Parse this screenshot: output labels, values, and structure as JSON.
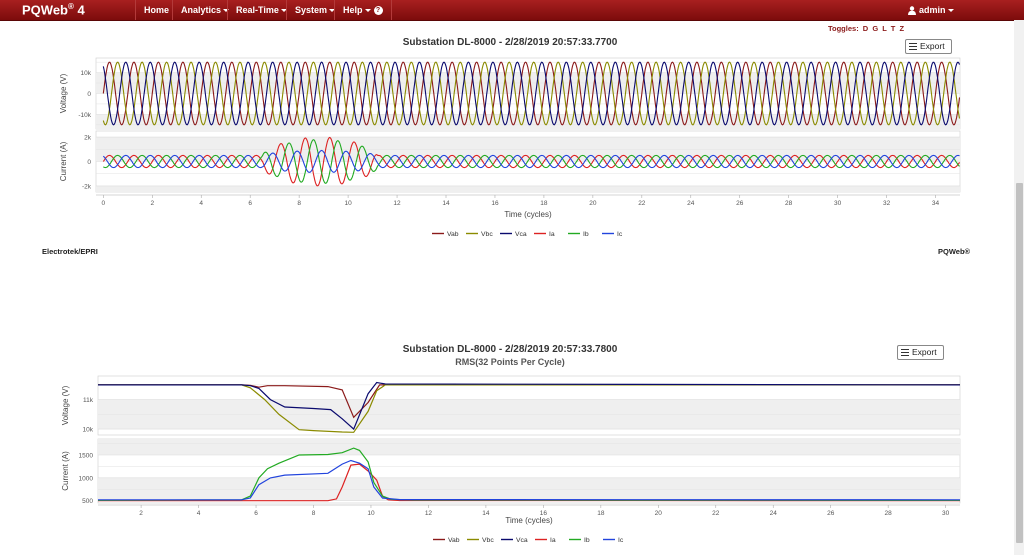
{
  "nav": {
    "brand": "PQWeb",
    "brand_sup": "®",
    "brand_version": "4",
    "items": [
      {
        "label": "Home"
      },
      {
        "label": "Analytics"
      },
      {
        "label": "Real-Time"
      },
      {
        "label": "System"
      },
      {
        "label": "Help"
      }
    ],
    "user": "admin"
  },
  "toggles": {
    "label": "Toggles:",
    "items": [
      "D",
      "G",
      "L",
      "T",
      "Z"
    ]
  },
  "footer": {
    "left": "Electrotek/EPRI",
    "right": "PQWeb®"
  },
  "colors": {
    "navbar": "#8b1010",
    "Vab": "#8b1a1a",
    "Vbc": "#8b8b00",
    "Vca": "#0a0a6e",
    "Ia": "#dd2222",
    "Ib": "#22aa22",
    "Ic": "#2244dd"
  },
  "chart_data": [
    {
      "type": "line",
      "title": "Substation DL-8000 - 2/28/2019 20:57:33.7700",
      "export_label": "Export",
      "xlabel": "Time (cycles)",
      "xlim": [
        -0.3,
        35
      ],
      "xticks": [
        "0",
        "2",
        "4",
        "6",
        "8",
        "10",
        "12",
        "14",
        "16",
        "18",
        "20",
        "22",
        "24",
        "26",
        "28",
        "30",
        "32",
        "34"
      ],
      "panels": [
        {
          "ylabel": "Voltage (V)",
          "ylim": [
            -17000,
            17000
          ],
          "yticks": [
            "10k",
            "0",
            "-10k"
          ],
          "grid": true
        },
        {
          "ylabel": "Current (A)",
          "ylim": [
            -2500,
            2500
          ],
          "yticks": [
            "2k",
            "0",
            "-2k"
          ],
          "grid": true
        }
      ],
      "series": [
        {
          "name": "Vab",
          "panel": "voltage",
          "amplitude": 15000,
          "phase_deg": 0
        },
        {
          "name": "Vbc",
          "panel": "voltage",
          "amplitude": 15000,
          "phase_deg": -120
        },
        {
          "name": "Vca",
          "panel": "voltage",
          "amplitude": 15000,
          "phase_deg": 120
        },
        {
          "name": "Ia",
          "panel": "current",
          "amplitude": 500,
          "fault_amplitude": 2000,
          "phase_deg": 0
        },
        {
          "name": "Ib",
          "panel": "current",
          "amplitude": 500,
          "fault_amplitude": 1800,
          "phase_deg": -120
        },
        {
          "name": "Ic",
          "panel": "current",
          "amplitude": 500,
          "fault_amplitude": 900,
          "phase_deg": 120
        }
      ],
      "fault_cycles": [
        6.5,
        11.2
      ],
      "legend": [
        "Vab",
        "Vbc",
        "Vca",
        "Ia",
        "Ib",
        "Ic"
      ],
      "legend_position": "bottom"
    },
    {
      "type": "line",
      "title": "Substation DL-8000 - 2/28/2019 20:57:33.7800",
      "subtitle": "RMS(32 Points Per Cycle)",
      "export_label": "Export",
      "xlabel": "Time (cycles)",
      "xlim": [
        0.5,
        30.5
      ],
      "xticks": [
        "2",
        "4",
        "6",
        "8",
        "10",
        "12",
        "14",
        "16",
        "18",
        "20",
        "22",
        "24",
        "26",
        "28",
        "30"
      ],
      "panels": [
        {
          "ylabel": "Voltage (V)",
          "ylim": [
            9800,
            11800
          ],
          "yticks": [
            "11k",
            "10k"
          ],
          "grid": true
        },
        {
          "ylabel": "Current (A)",
          "ylim": [
            450,
            1850
          ],
          "yticks": [
            "1500",
            "1000",
            "500"
          ],
          "grid": true
        }
      ],
      "series": [
        {
          "name": "Vab",
          "panel": "voltage",
          "points": [
            [
              0.5,
              11500
            ],
            [
              5.5,
              11500
            ],
            [
              5.8,
              11480
            ],
            [
              6.1,
              11420
            ],
            [
              6.4,
              11470
            ],
            [
              7,
              11470
            ],
            [
              8.5,
              11440
            ],
            [
              9,
              11330
            ],
            [
              9.4,
              10400
            ],
            [
              9.9,
              10900
            ],
            [
              10.3,
              11500
            ],
            [
              30.5,
              11500
            ]
          ]
        },
        {
          "name": "Vbc",
          "panel": "voltage",
          "points": [
            [
              0.5,
              11500
            ],
            [
              5.5,
              11500
            ],
            [
              5.8,
              11400
            ],
            [
              6.3,
              11000
            ],
            [
              6.8,
              10500
            ],
            [
              7.5,
              9980
            ],
            [
              8,
              9950
            ],
            [
              9,
              9900
            ],
            [
              9.4,
              9890
            ],
            [
              9.9,
              10600
            ],
            [
              10.2,
              11300
            ],
            [
              10.5,
              11500
            ],
            [
              30.5,
              11500
            ]
          ]
        },
        {
          "name": "Vca",
          "panel": "voltage",
          "points": [
            [
              0.5,
              11500
            ],
            [
              5.5,
              11500
            ],
            [
              5.8,
              11470
            ],
            [
              6.1,
              11380
            ],
            [
              6.5,
              11000
            ],
            [
              7,
              10750
            ],
            [
              8,
              10700
            ],
            [
              8.6,
              10660
            ],
            [
              9,
              10350
            ],
            [
              9.4,
              10000
            ],
            [
              9.9,
              11200
            ],
            [
              10.2,
              11580
            ],
            [
              10.5,
              11530
            ],
            [
              30.5,
              11500
            ]
          ]
        },
        {
          "name": "Ia",
          "panel": "current",
          "points": [
            [
              0.5,
              500
            ],
            [
              8.5,
              500
            ],
            [
              8.8,
              540
            ],
            [
              9.0,
              800
            ],
            [
              9.3,
              1280
            ],
            [
              9.6,
              1300
            ],
            [
              9.9,
              1150
            ],
            [
              10.2,
              950
            ],
            [
              10.4,
              600
            ],
            [
              10.6,
              520
            ],
            [
              11,
              505
            ],
            [
              30.5,
              500
            ]
          ]
        },
        {
          "name": "Ib",
          "panel": "current",
          "points": [
            [
              0.5,
              510
            ],
            [
              5.5,
              520
            ],
            [
              5.8,
              600
            ],
            [
              6.1,
              1000
            ],
            [
              6.4,
              1200
            ],
            [
              6.8,
              1320
            ],
            [
              7.5,
              1500
            ],
            [
              8.5,
              1510
            ],
            [
              9,
              1550
            ],
            [
              9.4,
              1650
            ],
            [
              9.6,
              1600
            ],
            [
              9.9,
              1350
            ],
            [
              10.1,
              900
            ],
            [
              10.4,
              600
            ],
            [
              10.7,
              530
            ],
            [
              11.5,
              515
            ],
            [
              30.5,
              510
            ]
          ]
        },
        {
          "name": "Ic",
          "panel": "current",
          "points": [
            [
              0.5,
              520
            ],
            [
              5.5,
              520
            ],
            [
              5.8,
              560
            ],
            [
              6.1,
              850
            ],
            [
              6.5,
              1000
            ],
            [
              7,
              1060
            ],
            [
              8.5,
              1100
            ],
            [
              9,
              1300
            ],
            [
              9.3,
              1380
            ],
            [
              9.6,
              1320
            ],
            [
              9.9,
              1200
            ],
            [
              10.1,
              800
            ],
            [
              10.4,
              560
            ],
            [
              11,
              525
            ],
            [
              30.5,
              520
            ]
          ]
        }
      ],
      "legend": [
        "Vab",
        "Vbc",
        "Vca",
        "Ia",
        "Ib",
        "Ic"
      ],
      "legend_position": "bottom"
    }
  ]
}
